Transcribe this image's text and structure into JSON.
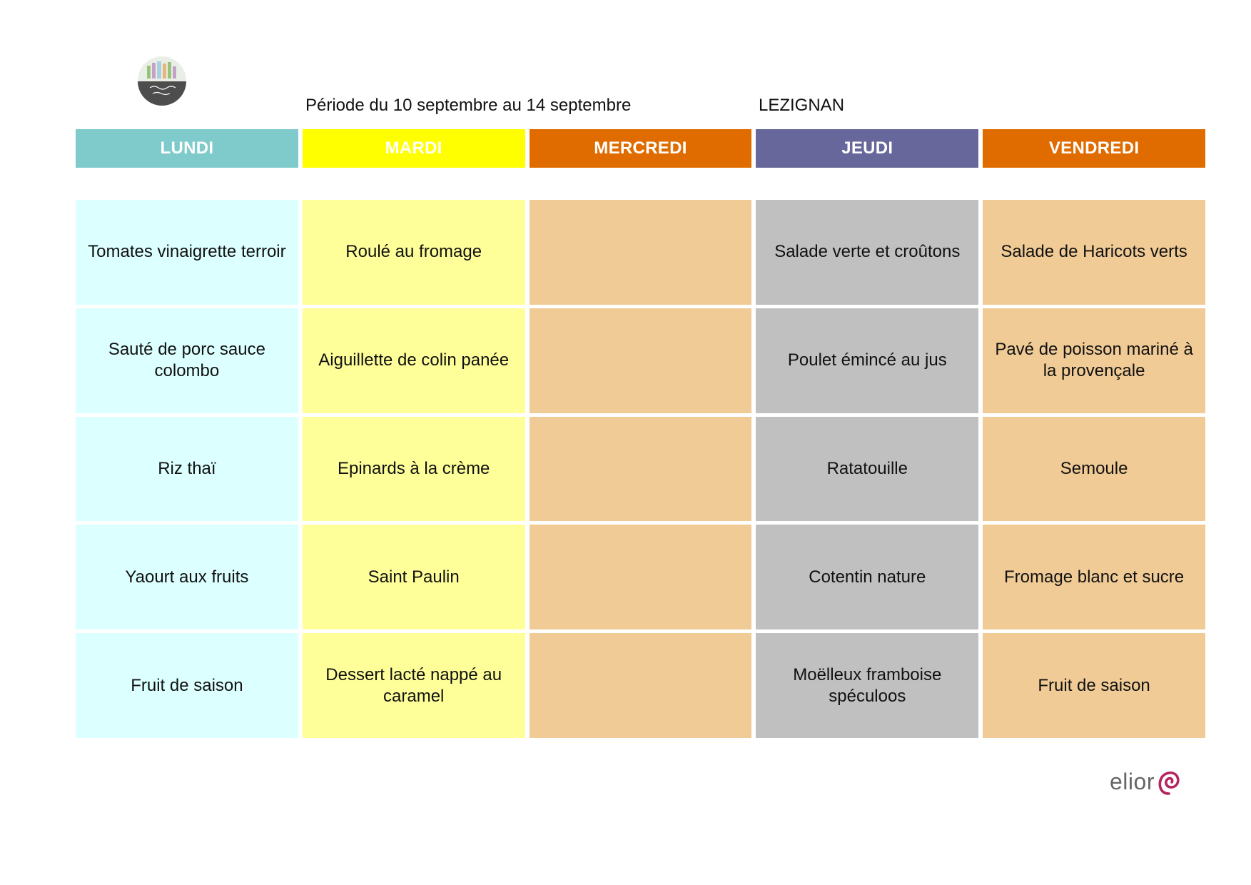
{
  "header": {
    "period": "Période du 10 septembre au 14 septembre",
    "location": "LEZIGNAN"
  },
  "brand": {
    "logo_icon": "vegetable-basket-round-logo-icon",
    "footer_logo_text": "elior",
    "footer_logo_icon": "elior-swirl-logo-icon",
    "footer_logo_color": "#b5245e"
  },
  "days": [
    {
      "label": "LUNDI",
      "header_color": "#7fcbcb",
      "cell_color": "#dcffff",
      "items": [
        "Tomates vinaigrette terroir",
        "Sauté de porc sauce colombo",
        "Riz thaï",
        "Yaourt aux fruits",
        "Fruit de saison"
      ]
    },
    {
      "label": "MARDI",
      "header_color": "#ffff00",
      "cell_color": "#ffff99",
      "items": [
        "Roulé au fromage",
        "Aiguillette de colin panée",
        "Epinards à la crème",
        "Saint Paulin",
        "Dessert lacté nappé au caramel"
      ]
    },
    {
      "label": "MERCREDI",
      "header_color": "#e06c00",
      "cell_color": "#f1cb96",
      "items": [
        "",
        "",
        "",
        "",
        ""
      ]
    },
    {
      "label": "JEUDI",
      "header_color": "#67679b",
      "cell_color": "#c0c0c0",
      "items": [
        "Salade verte et croûtons",
        "Poulet émincé au jus",
        "Ratatouille",
        "Cotentin nature",
        "Moëlleux framboise spéculoos"
      ]
    },
    {
      "label": "VENDREDI",
      "header_color": "#e06c00",
      "cell_color": "#f1cb96",
      "items": [
        "Salade de Haricots verts",
        "Pavé de poisson mariné à la provençale",
        "Semoule",
        "Fromage blanc et sucre",
        "Fruit de saison"
      ]
    }
  ]
}
